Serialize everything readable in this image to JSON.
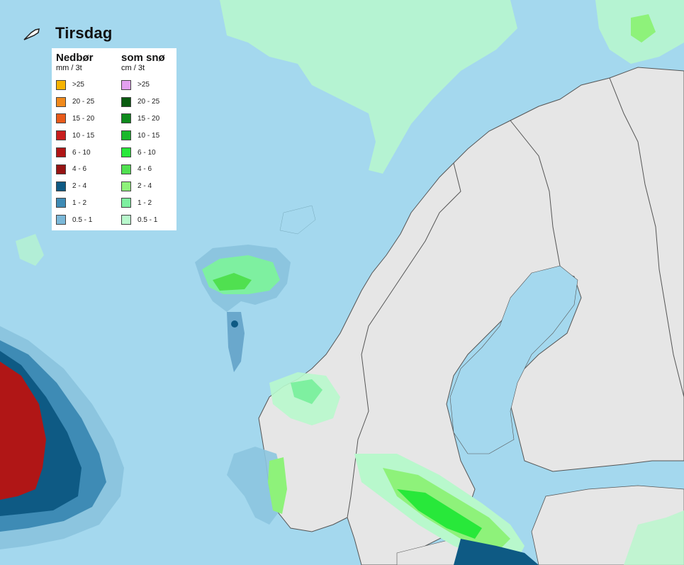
{
  "day_title": "Tirsdag",
  "legend": {
    "rain": {
      "heading": "Nedbør",
      "unit": "mm / 3t",
      "items": [
        {
          "label": ">25",
          "color": "#f6b400"
        },
        {
          "label": "20 - 25",
          "color": "#f08a1c"
        },
        {
          "label": "15 - 20",
          "color": "#e85a1a"
        },
        {
          "label": "10 - 15",
          "color": "#c81e1e"
        },
        {
          "label": "6 - 10",
          "color": "#b01616"
        },
        {
          "label": "4 - 6",
          "color": "#961414"
        },
        {
          "label": "2 - 4",
          "color": "#0e5a84"
        },
        {
          "label": "1 - 2",
          "color": "#3e8bb5"
        },
        {
          "label": "0.5 - 1",
          "color": "#7bb8d8"
        }
      ]
    },
    "snow": {
      "heading": "som snø",
      "unit": "cm / 3t",
      "items": [
        {
          "label": ">25",
          "color": "#e3a0f0"
        },
        {
          "label": "20 - 25",
          "color": "#0a5c10"
        },
        {
          "label": "15 - 20",
          "color": "#0e8a1c"
        },
        {
          "label": "10 - 15",
          "color": "#1ab82a"
        },
        {
          "label": "6 - 10",
          "color": "#28e83a"
        },
        {
          "label": "4 - 6",
          "color": "#50e050"
        },
        {
          "label": "2 - 4",
          "color": "#8ef27a"
        },
        {
          "label": "1 - 2",
          "color": "#7ef0a0"
        },
        {
          "label": "0.5 - 1",
          "color": "#b8f8cc"
        }
      ]
    }
  },
  "colors": {
    "sea": "#a4d8ee",
    "land": "#e6e6e6",
    "border": "#555555",
    "precip_light": "#8cc5df",
    "precip_mid": "#3e8bb5",
    "precip_dark": "#0e5a84",
    "precip_heavy": "#b01616",
    "snow_light": "#b8f8cc",
    "snow_mid": "#7ef0a0",
    "snow_heavy": "#50e050"
  }
}
